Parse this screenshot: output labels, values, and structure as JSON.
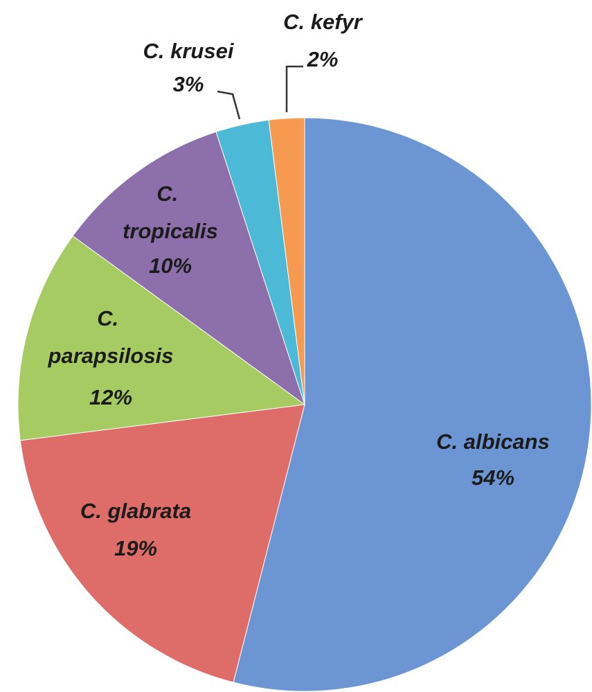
{
  "chart_data": {
    "type": "pie",
    "categories": [
      "C. albicans",
      "C. glabrata",
      "C. parapsilosis",
      "C. tropicalis",
      "C. krusei",
      "C. kefyr"
    ],
    "values": [
      54,
      19,
      12,
      10,
      3,
      2
    ],
    "value_labels": [
      "54%",
      "19%",
      "12%",
      "10%",
      "3%",
      "2%"
    ],
    "colors": [
      "#6b95d3",
      "#de6c68",
      "#a6cb63",
      "#8d6fac",
      "#4cb9d6",
      "#f59a50"
    ]
  }
}
